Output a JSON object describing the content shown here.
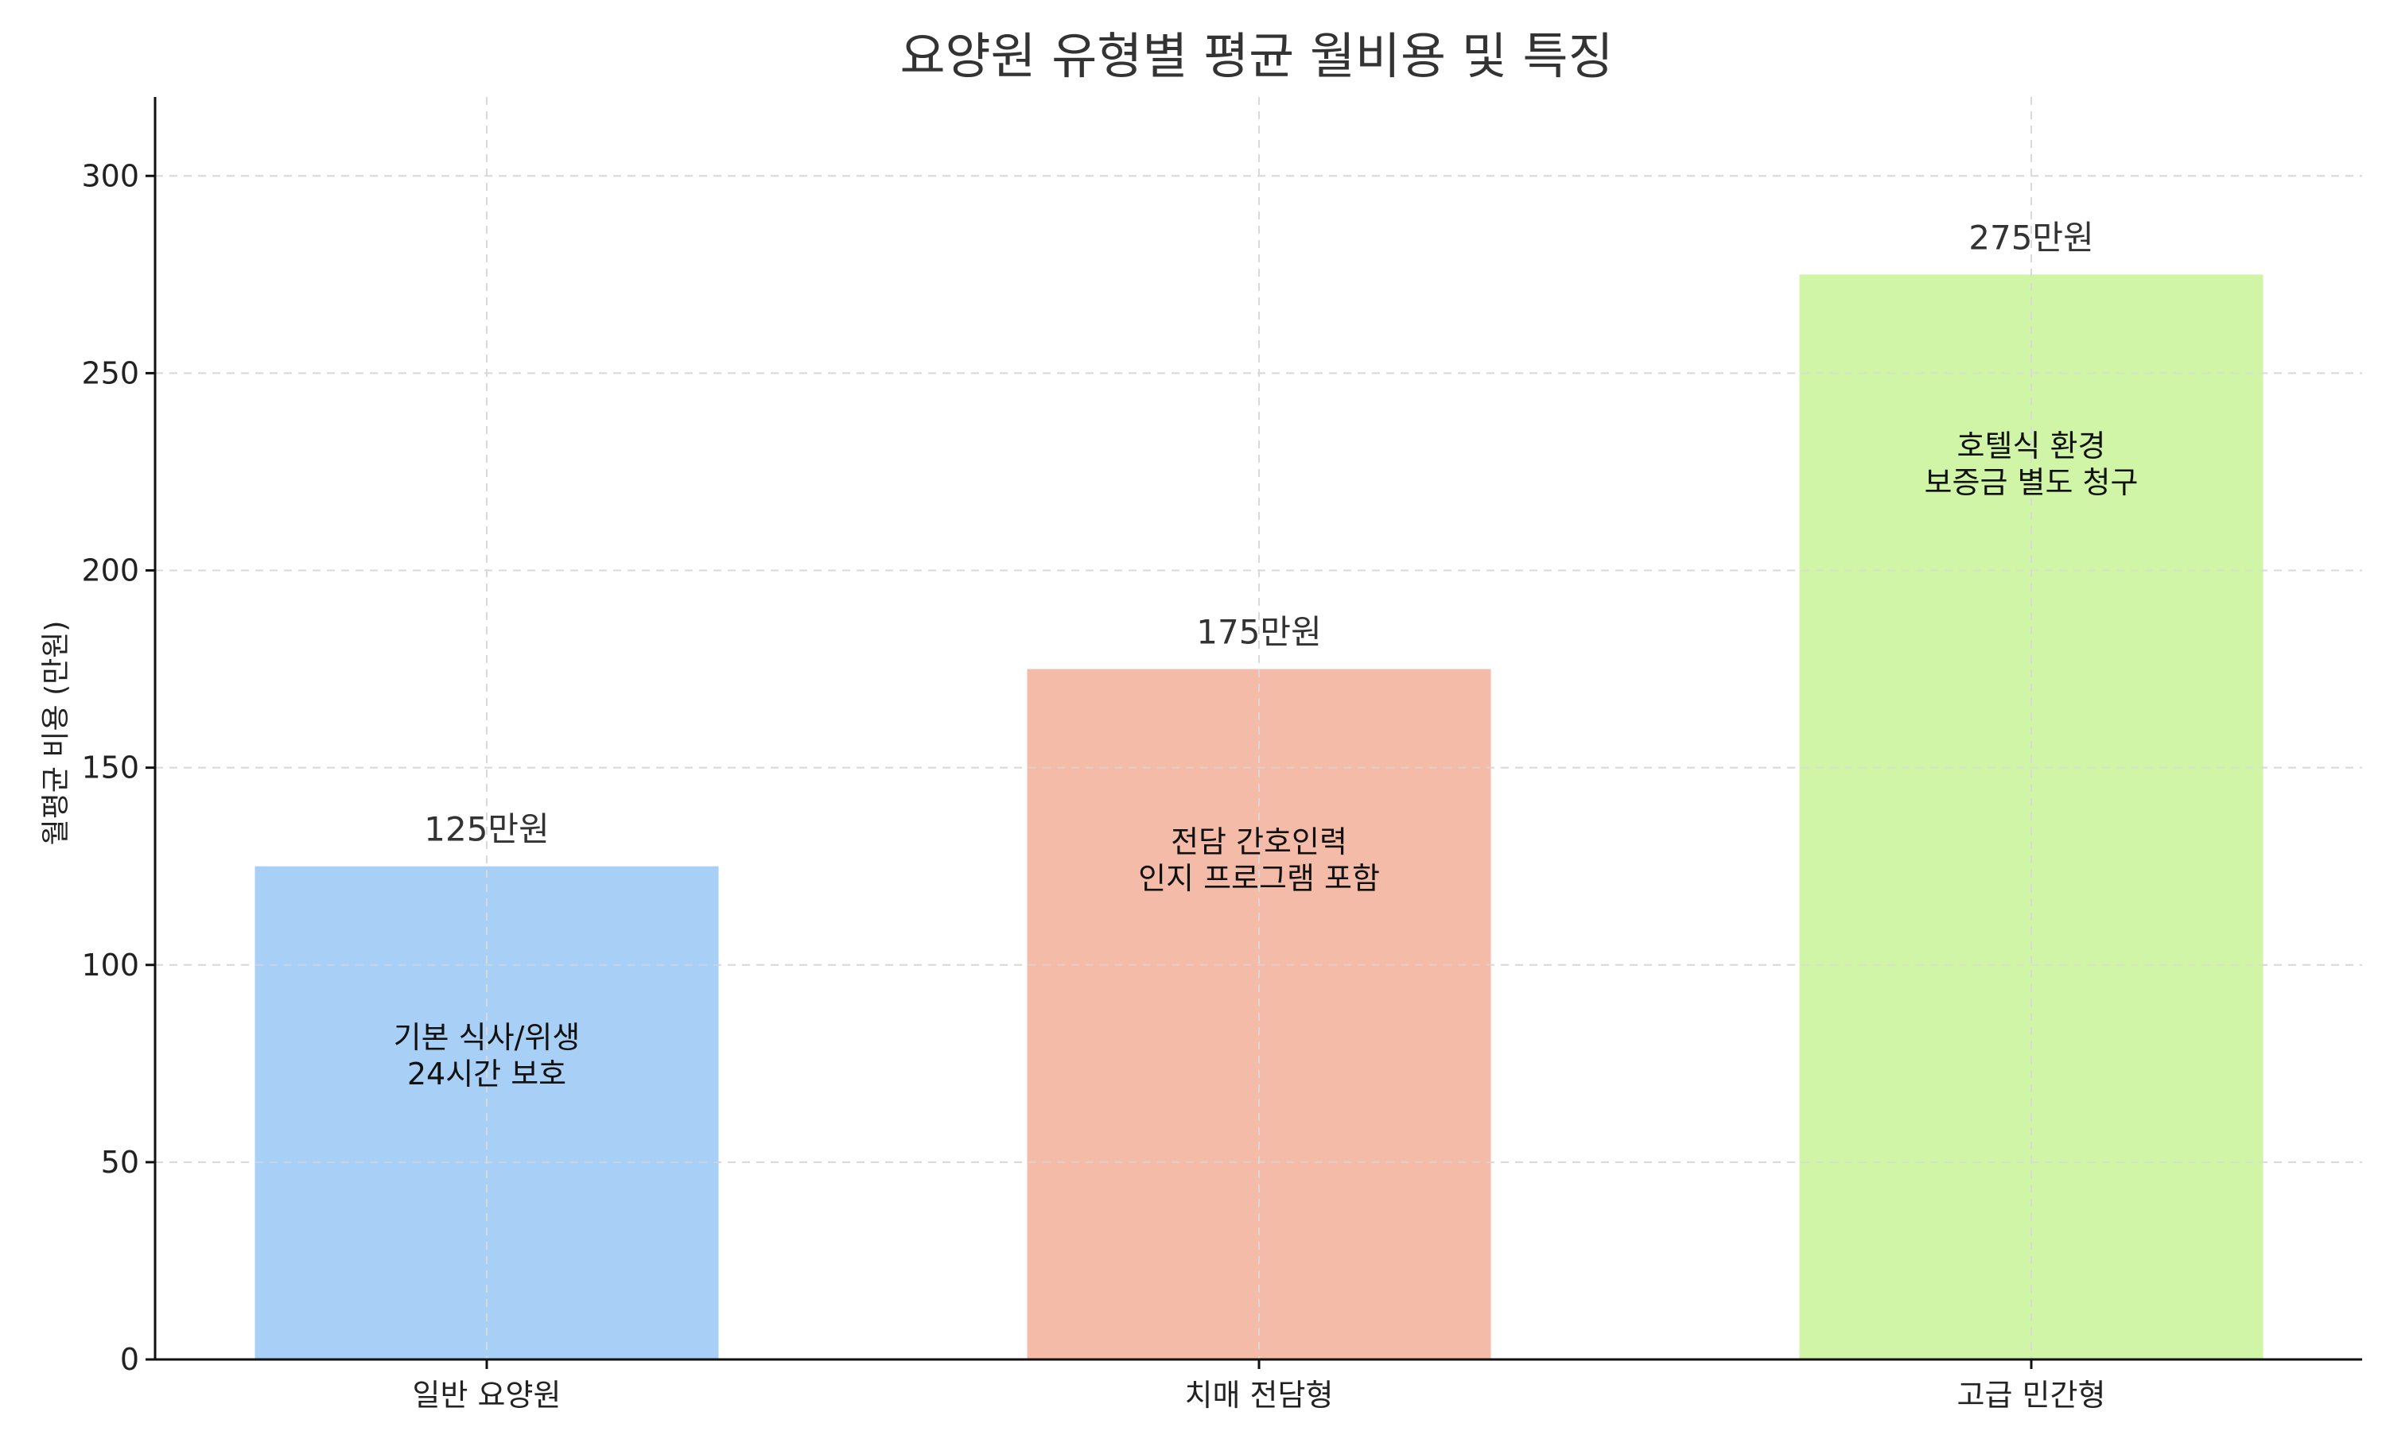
{
  "chart_data": {
    "type": "bar",
    "title": "요양원 유형별 평균 월비용 및 특징",
    "xlabel": "",
    "ylabel": "월평균 비용 (만원)",
    "ylim": [
      0,
      320
    ],
    "yticks": [
      0,
      50,
      100,
      150,
      200,
      250,
      300
    ],
    "grid": true,
    "categories": [
      "일반 요양원",
      "치매 전담형",
      "고급 민간형"
    ],
    "values": [
      125,
      175,
      275
    ],
    "value_labels": [
      "125만원",
      "175만원",
      "275만원"
    ],
    "annotations": [
      [
        "기본 식사/위생",
        "24시간 보호"
      ],
      [
        "전담 간호인력",
        "인지 프로그램 포함"
      ],
      [
        "호텔식 환경",
        "보증금 별도 청구"
      ]
    ],
    "colors": [
      "#a8cff5",
      "#f4bba9",
      "#d0f5a6"
    ]
  }
}
